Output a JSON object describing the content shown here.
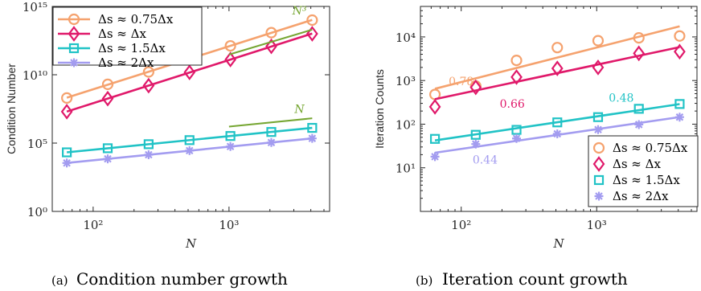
{
  "colors": {
    "orange": "#F5A26E",
    "magenta": "#E0196A",
    "cyan": "#21C3C6",
    "purple": "#A39CF0",
    "green": "#76A632"
  },
  "chart_data": [
    {
      "type": "line",
      "xlabel": "N",
      "ylabel": "Condition Number",
      "xscale": "log",
      "yscale": "log",
      "xlim": [
        50,
        5500
      ],
      "ylim": [
        1,
        1000000000000000.0
      ],
      "x_ticks": [
        "10²",
        "10³"
      ],
      "y_ticks": [
        "10⁰",
        "10⁵",
        "10¹⁰",
        "10¹⁵"
      ],
      "legend_position": "top-left",
      "x": [
        64,
        128,
        256,
        512,
        1024,
        2048,
        4096
      ],
      "series": [
        {
          "name": "Δs ≈ 0.75Δx",
          "marker": "circle",
          "values": [
            200000000.0,
            2000000000.0,
            16000000000.0,
            150000000000.0,
            1300000000000.0,
            12000000000000.0,
            100000000000000.0
          ]
        },
        {
          "name": "Δs ≈ Δx",
          "marker": "diamond",
          "values": [
            20000000.0,
            180000000.0,
            1600000000.0,
            15000000000.0,
            130000000000.0,
            1200000000000.0,
            10000000000000.0
          ]
        },
        {
          "name": "Δs ≈ 1.5Δx",
          "marker": "square",
          "values": [
            21000.0,
            42000.0,
            83000.0,
            165000.0,
            330000.0,
            650000.0,
            1300000.0
          ]
        },
        {
          "name": "Δs ≈ 2Δx",
          "marker": "asterisk",
          "values": [
            3500,
            7000,
            14000,
            28000,
            56000,
            110000,
            220000
          ]
        }
      ],
      "annotations": [
        "N³",
        "N"
      ]
    },
    {
      "type": "line",
      "xlabel": "N",
      "ylabel": "Iteration Counts",
      "xscale": "log",
      "yscale": "log",
      "xlim": [
        50,
        5500
      ],
      "ylim": [
        1,
        50000
      ],
      "x_ticks": [
        "10²",
        "10³"
      ],
      "y_ticks": [
        "10¹",
        "10²",
        "10³",
        "10⁴"
      ],
      "legend_position": "bottom-right",
      "x": [
        64,
        128,
        256,
        512,
        1024,
        2048,
        4096
      ],
      "series": [
        {
          "name": "Δs ≈ 0.75Δx",
          "marker": "circle",
          "values": [
            480,
            750,
            2900,
            5700,
            8200,
            9500,
            10500
          ]
        },
        {
          "name": "Δs ≈ Δx",
          "marker": "diamond",
          "values": [
            250,
            700,
            1200,
            1900,
            2000,
            4200,
            4600
          ]
        },
        {
          "name": "Δs ≈ 1.5Δx",
          "marker": "square",
          "values": [
            46,
            57,
            74,
            110,
            145,
            225,
            290
          ]
        },
        {
          "name": "Δs ≈ 2Δx",
          "marker": "asterisk",
          "values": [
            18,
            35,
            47,
            60,
            75,
            98,
            145
          ]
        }
      ],
      "annotations": [
        "0.78",
        "0.66",
        "0.48",
        "0.44"
      ]
    }
  ],
  "captions": {
    "a_label": "(a)",
    "a_text": "Condition number growth",
    "b_label": "(b)",
    "b_text": "Iteration count growth"
  }
}
